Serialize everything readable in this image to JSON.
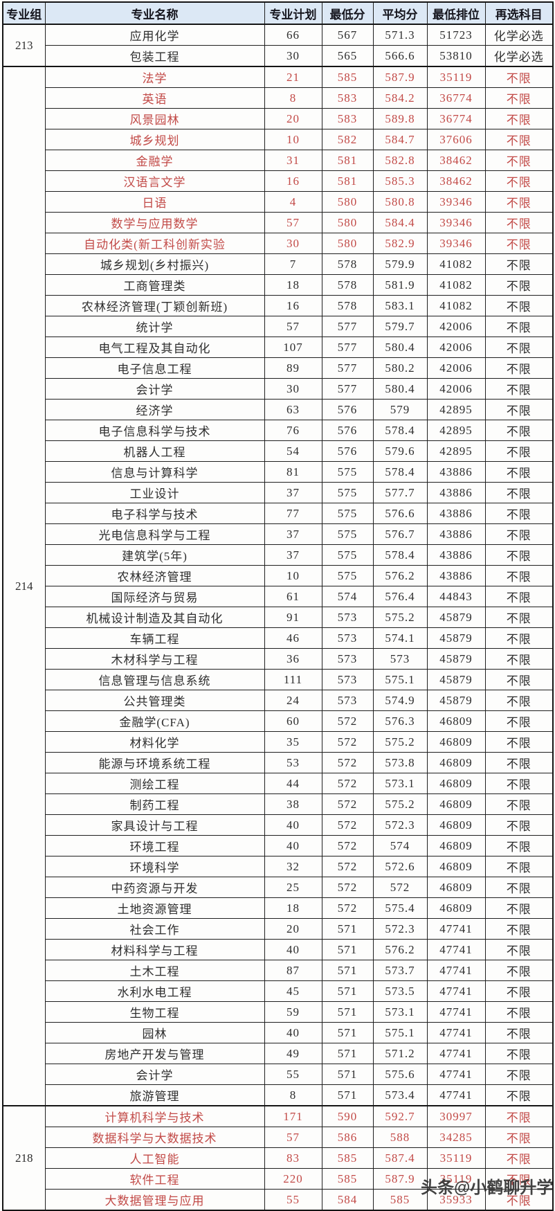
{
  "table": {
    "columns": {
      "group": "专业组",
      "major": "专业名称",
      "plan": "专业计划",
      "min_score": "最低分",
      "avg_score": "平均分",
      "min_rank": "最低排位",
      "subject": "再选科目"
    },
    "groups": [
      {
        "group": "213",
        "rows": [
          {
            "major": "应用化学",
            "plan": "66",
            "min": "567",
            "avg": "571.3",
            "rank": "51723",
            "subject": "化学必选",
            "red": false
          },
          {
            "major": "包装工程",
            "plan": "30",
            "min": "565",
            "avg": "566.6",
            "rank": "53810",
            "subject": "化学必选",
            "red": false
          }
        ]
      },
      {
        "group": "214",
        "rows": [
          {
            "major": "法学",
            "plan": "21",
            "min": "585",
            "avg": "587.9",
            "rank": "35119",
            "subject": "不限",
            "red": true
          },
          {
            "major": "英语",
            "plan": "8",
            "min": "583",
            "avg": "584.2",
            "rank": "36774",
            "subject": "不限",
            "red": true
          },
          {
            "major": "风景园林",
            "plan": "20",
            "min": "583",
            "avg": "589.8",
            "rank": "36774",
            "subject": "不限",
            "red": true
          },
          {
            "major": "城乡规划",
            "plan": "10",
            "min": "582",
            "avg": "584.7",
            "rank": "37606",
            "subject": "不限",
            "red": true
          },
          {
            "major": "金融学",
            "plan": "31",
            "min": "581",
            "avg": "582.8",
            "rank": "38462",
            "subject": "不限",
            "red": true
          },
          {
            "major": "汉语言文学",
            "plan": "16",
            "min": "581",
            "avg": "585.3",
            "rank": "38462",
            "subject": "不限",
            "red": true
          },
          {
            "major": "日语",
            "plan": "4",
            "min": "580",
            "avg": "580.8",
            "rank": "39346",
            "subject": "不限",
            "red": true
          },
          {
            "major": "数学与应用数学",
            "plan": "57",
            "min": "580",
            "avg": "584.4",
            "rank": "39346",
            "subject": "不限",
            "red": true
          },
          {
            "major": "自动化类(新工科创新实验",
            "plan": "30",
            "min": "580",
            "avg": "582.9",
            "rank": "39346",
            "subject": "不限",
            "red": true
          },
          {
            "major": "城乡规划(乡村振兴)",
            "plan": "7",
            "min": "578",
            "avg": "579.9",
            "rank": "41082",
            "subject": "不限",
            "red": false
          },
          {
            "major": "工商管理类",
            "plan": "18",
            "min": "578",
            "avg": "581.9",
            "rank": "41082",
            "subject": "不限",
            "red": false
          },
          {
            "major": "农林经济管理(丁颖创新班)",
            "plan": "16",
            "min": "578",
            "avg": "583.1",
            "rank": "41082",
            "subject": "不限",
            "red": false
          },
          {
            "major": "统计学",
            "plan": "57",
            "min": "577",
            "avg": "579.7",
            "rank": "42006",
            "subject": "不限",
            "red": false
          },
          {
            "major": "电气工程及其自动化",
            "plan": "107",
            "min": "577",
            "avg": "580.4",
            "rank": "42006",
            "subject": "不限",
            "red": false
          },
          {
            "major": "电子信息工程",
            "plan": "89",
            "min": "577",
            "avg": "580.2",
            "rank": "42006",
            "subject": "不限",
            "red": false
          },
          {
            "major": "会计学",
            "plan": "30",
            "min": "577",
            "avg": "580.4",
            "rank": "42006",
            "subject": "不限",
            "red": false
          },
          {
            "major": "经济学",
            "plan": "63",
            "min": "576",
            "avg": "579",
            "rank": "42895",
            "subject": "不限",
            "red": false
          },
          {
            "major": "电子信息科学与技术",
            "plan": "76",
            "min": "576",
            "avg": "578.4",
            "rank": "42895",
            "subject": "不限",
            "red": false
          },
          {
            "major": "机器人工程",
            "plan": "54",
            "min": "576",
            "avg": "579.6",
            "rank": "42895",
            "subject": "不限",
            "red": false
          },
          {
            "major": "信息与计算科学",
            "plan": "81",
            "min": "575",
            "avg": "578.4",
            "rank": "43886",
            "subject": "不限",
            "red": false
          },
          {
            "major": "工业设计",
            "plan": "37",
            "min": "575",
            "avg": "577.7",
            "rank": "43886",
            "subject": "不限",
            "red": false
          },
          {
            "major": "电子科学与技术",
            "plan": "77",
            "min": "575",
            "avg": "576.6",
            "rank": "43886",
            "subject": "不限",
            "red": false
          },
          {
            "major": "光电信息科学与工程",
            "plan": "37",
            "min": "575",
            "avg": "576.7",
            "rank": "43886",
            "subject": "不限",
            "red": false
          },
          {
            "major": "建筑学(5年)",
            "plan": "37",
            "min": "575",
            "avg": "578.4",
            "rank": "43886",
            "subject": "不限",
            "red": false
          },
          {
            "major": "农林经济管理",
            "plan": "10",
            "min": "575",
            "avg": "576.2",
            "rank": "43886",
            "subject": "不限",
            "red": false
          },
          {
            "major": "国际经济与贸易",
            "plan": "61",
            "min": "574",
            "avg": "576.4",
            "rank": "44843",
            "subject": "不限",
            "red": false
          },
          {
            "major": "机械设计制造及其自动化",
            "plan": "91",
            "min": "573",
            "avg": "575.2",
            "rank": "45879",
            "subject": "不限",
            "red": false
          },
          {
            "major": "车辆工程",
            "plan": "46",
            "min": "573",
            "avg": "574.1",
            "rank": "45879",
            "subject": "不限",
            "red": false
          },
          {
            "major": "木材科学与工程",
            "plan": "36",
            "min": "573",
            "avg": "573",
            "rank": "45879",
            "subject": "不限",
            "red": false
          },
          {
            "major": "信息管理与信息系统",
            "plan": "111",
            "min": "573",
            "avg": "575.1",
            "rank": "45879",
            "subject": "不限",
            "red": false
          },
          {
            "major": "公共管理类",
            "plan": "24",
            "min": "573",
            "avg": "574.9",
            "rank": "45879",
            "subject": "不限",
            "red": false
          },
          {
            "major": "金融学(CFA)",
            "plan": "60",
            "min": "572",
            "avg": "576.3",
            "rank": "46809",
            "subject": "不限",
            "red": false
          },
          {
            "major": "材料化学",
            "plan": "35",
            "min": "572",
            "avg": "575.2",
            "rank": "46809",
            "subject": "不限",
            "red": false
          },
          {
            "major": "能源与环境系统工程",
            "plan": "53",
            "min": "572",
            "avg": "573.8",
            "rank": "46809",
            "subject": "不限",
            "red": false
          },
          {
            "major": "测绘工程",
            "plan": "44",
            "min": "572",
            "avg": "573.1",
            "rank": "46809",
            "subject": "不限",
            "red": false
          },
          {
            "major": "制药工程",
            "plan": "38",
            "min": "572",
            "avg": "575.2",
            "rank": "46809",
            "subject": "不限",
            "red": false
          },
          {
            "major": "家具设计与工程",
            "plan": "40",
            "min": "572",
            "avg": "572.3",
            "rank": "46809",
            "subject": "不限",
            "red": false
          },
          {
            "major": "环境工程",
            "plan": "40",
            "min": "572",
            "avg": "574",
            "rank": "46809",
            "subject": "不限",
            "red": false
          },
          {
            "major": "环境科学",
            "plan": "32",
            "min": "572",
            "avg": "572.6",
            "rank": "46809",
            "subject": "不限",
            "red": false
          },
          {
            "major": "中药资源与开发",
            "plan": "25",
            "min": "572",
            "avg": "572",
            "rank": "46809",
            "subject": "不限",
            "red": false
          },
          {
            "major": "土地资源管理",
            "plan": "18",
            "min": "572",
            "avg": "575.4",
            "rank": "46809",
            "subject": "不限",
            "red": false
          },
          {
            "major": "社会工作",
            "plan": "20",
            "min": "571",
            "avg": "572.3",
            "rank": "47741",
            "subject": "不限",
            "red": false
          },
          {
            "major": "材料科学与工程",
            "plan": "40",
            "min": "571",
            "avg": "576.2",
            "rank": "47741",
            "subject": "不限",
            "red": false
          },
          {
            "major": "土木工程",
            "plan": "87",
            "min": "571",
            "avg": "573.7",
            "rank": "47741",
            "subject": "不限",
            "red": false
          },
          {
            "major": "水利水电工程",
            "plan": "45",
            "min": "571",
            "avg": "573.5",
            "rank": "47741",
            "subject": "不限",
            "red": false
          },
          {
            "major": "生物工程",
            "plan": "59",
            "min": "571",
            "avg": "573.1",
            "rank": "47741",
            "subject": "不限",
            "red": false
          },
          {
            "major": "园林",
            "plan": "40",
            "min": "571",
            "avg": "575.1",
            "rank": "47741",
            "subject": "不限",
            "red": false
          },
          {
            "major": "房地产开发与管理",
            "plan": "49",
            "min": "571",
            "avg": "571.2",
            "rank": "47741",
            "subject": "不限",
            "red": false
          },
          {
            "major": "会计学",
            "plan": "55",
            "min": "571",
            "avg": "575.6",
            "rank": "47741",
            "subject": "不限",
            "red": false
          },
          {
            "major": "旅游管理",
            "plan": "8",
            "min": "571",
            "avg": "573.4",
            "rank": "47741",
            "subject": "不限",
            "red": false
          }
        ]
      },
      {
        "group": "218",
        "rows": [
          {
            "major": "计算机科学与技术",
            "plan": "171",
            "min": "590",
            "avg": "592.7",
            "rank": "30997",
            "subject": "不限",
            "red": true
          },
          {
            "major": "数据科学与大数据技术",
            "plan": "57",
            "min": "586",
            "avg": "588",
            "rank": "34285",
            "subject": "不限",
            "red": true
          },
          {
            "major": "人工智能",
            "plan": "83",
            "min": "585",
            "avg": "587.4",
            "rank": "35119",
            "subject": "不限",
            "red": true
          },
          {
            "major": "软件工程",
            "plan": "220",
            "min": "585",
            "avg": "587.9",
            "rank": "35119",
            "subject": "不限",
            "red": true
          },
          {
            "major": "大数据管理与应用",
            "plan": "55",
            "min": "584",
            "avg": "585",
            "rank": "35933",
            "subject": "不限",
            "red": true
          }
        ]
      }
    ]
  },
  "watermark": {
    "text": "头条@小鹤聊升学"
  },
  "colors": {
    "header_bg": "#dce8f5",
    "red_text": "#c24a47",
    "black_text": "#2d2d2d",
    "border": "#1e1e1e"
  }
}
